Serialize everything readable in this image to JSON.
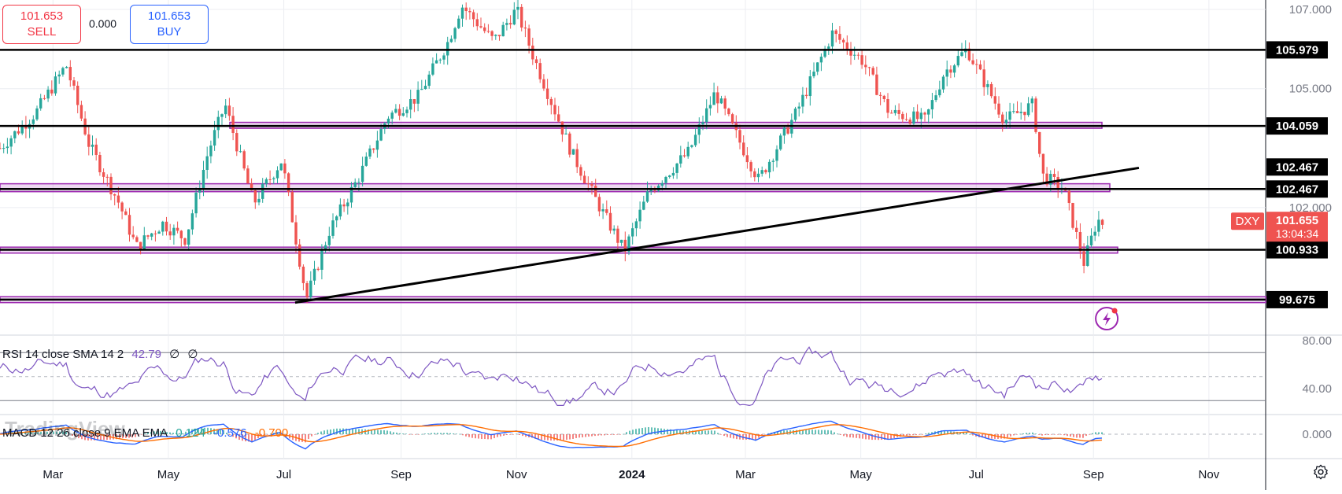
{
  "trade": {
    "sell_price": "101.653",
    "sell_label": "SELL",
    "buy_price": "101.653",
    "buy_label": "BUY",
    "spread": "0.000"
  },
  "watermark": "TradingView",
  "symbol": {
    "ticker": "DXY",
    "price": "101.655",
    "countdown": "13:04:34"
  },
  "colors": {
    "up": "#26a69a",
    "down": "#ef5350",
    "rsi": "#7e57c2",
    "macd": "#2962ff",
    "signal": "#ff6d00",
    "zone": "#9c27b0",
    "badge_red": "#ef5350"
  },
  "rsi_label": {
    "name": "RSI 14 close SMA 14 2",
    "value": "42.79",
    "v2": "∅",
    "v3": "∅"
  },
  "macd_label": {
    "name": "MACD 12 26 close 9 EMA EMA",
    "hist": "0.124",
    "macd": "-0.576",
    "signal": "-0.700"
  },
  "price_axis": {
    "ticks": [
      "107.000",
      "105.000",
      "102.000"
    ]
  },
  "rsi_axis": {
    "ticks": [
      "80.00",
      "40.00"
    ]
  },
  "macd_axis": {
    "ticks": [
      "0.000"
    ]
  },
  "time_axis": {
    "labels": [
      "Mar",
      "May",
      "Jul",
      "Sep",
      "Nov",
      "2024",
      "Mar",
      "May",
      "Jul",
      "Sep",
      "Nov"
    ]
  },
  "chart_data": [
    {
      "type": "candlestick",
      "title": "DXY",
      "x_range": [
        "2023-02",
        "2024-11"
      ],
      "ylim": [
        99.6,
        107.2
      ],
      "current_price": 101.655,
      "horizontal_levels": [
        105.979,
        104.059,
        102.467,
        100.933,
        99.675
      ],
      "level_labels": [
        "105.979",
        "104.059",
        "102.467",
        "100.933",
        "99.675"
      ],
      "trendline_label": "102.467",
      "trendline": {
        "from": [
          "2023-07-07",
          99.6
        ],
        "to": [
          "2024-09-25",
          103.0
        ]
      },
      "zones": [
        [
          104.0,
          104.15
        ],
        [
          102.4,
          102.6
        ],
        [
          100.85,
          101.0
        ],
        [
          99.6,
          99.75
        ]
      ],
      "price_path": [
        [
          "2023-02-01",
          103.5
        ],
        [
          "2023-02-20",
          104.4
        ],
        [
          "2023-03-08",
          105.6
        ],
        [
          "2023-03-20",
          103.6
        ],
        [
          "2023-04-05",
          102.1
        ],
        [
          "2023-04-14",
          101.0
        ],
        [
          "2023-04-28",
          101.6
        ],
        [
          "2023-05-10",
          101.2
        ],
        [
          "2023-05-22",
          103.4
        ],
        [
          "2023-05-31",
          104.6
        ],
        [
          "2023-06-15",
          102.1
        ],
        [
          "2023-06-30",
          103.2
        ],
        [
          "2023-07-13",
          99.7
        ],
        [
          "2023-07-25",
          101.4
        ],
        [
          "2023-08-10",
          102.8
        ],
        [
          "2023-08-25",
          104.3
        ],
        [
          "2023-09-10",
          104.8
        ],
        [
          "2023-09-26",
          106.2
        ],
        [
          "2023-10-03",
          107.1
        ],
        [
          "2023-10-20",
          106.2
        ],
        [
          "2023-11-01",
          107.0
        ],
        [
          "2023-11-10",
          105.8
        ],
        [
          "2023-11-30",
          103.4
        ],
        [
          "2023-12-14",
          102.1
        ],
        [
          "2023-12-28",
          100.9
        ],
        [
          "2024-01-10",
          102.4
        ],
        [
          "2024-01-31",
          103.4
        ],
        [
          "2024-02-14",
          104.9
        ],
        [
          "2024-03-08",
          102.7
        ],
        [
          "2024-03-28",
          104.4
        ],
        [
          "2024-04-16",
          106.4
        ],
        [
          "2024-05-02",
          105.7
        ],
        [
          "2024-05-16",
          104.4
        ],
        [
          "2024-06-04",
          104.2
        ],
        [
          "2024-06-14",
          105.4
        ],
        [
          "2024-06-26",
          106.0
        ],
        [
          "2024-07-16",
          104.2
        ],
        [
          "2024-07-31",
          104.6
        ],
        [
          "2024-08-05",
          102.8
        ],
        [
          "2024-08-16",
          102.5
        ],
        [
          "2024-08-27",
          100.6
        ],
        [
          "2024-09-03",
          101.7
        ],
        [
          "2024-09-06",
          101.6
        ]
      ]
    },
    {
      "type": "line",
      "title": "RSI 14 close SMA 14 2",
      "ylim": [
        20,
        90
      ],
      "series": [
        {
          "name": "RSI",
          "last": 42.79
        }
      ],
      "bands": [
        70,
        50,
        30
      ]
    },
    {
      "type": "line",
      "title": "MACD 12 26 close 9 EMA EMA",
      "series": [
        {
          "name": "MACD",
          "last": -0.576
        },
        {
          "name": "Signal",
          "last": -0.7
        }
      ],
      "histogram_last": 0.124
    }
  ]
}
